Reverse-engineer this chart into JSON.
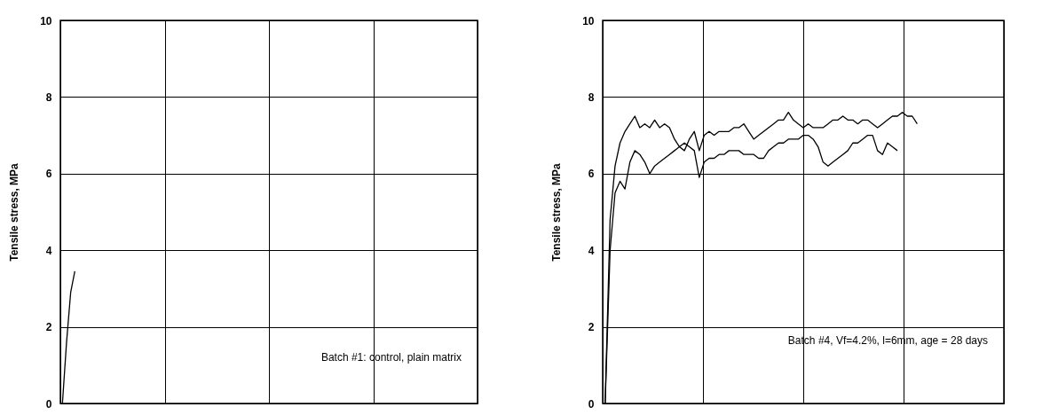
{
  "chart_data": [
    {
      "type": "line",
      "ylabel": "Tensile stress, MPa",
      "categories": [
        null,
        null,
        null,
        null,
        null,
        null,
        null,
        null,
        null,
        null,
        null,
        null,
        null,
        null,
        null,
        null,
        null,
        null,
        null,
        null,
        null,
        null,
        null,
        null,
        null,
        null,
        null,
        null,
        null,
        null,
        null,
        null,
        null,
        null,
        null,
        null,
        null,
        null,
        null,
        null,
        null,
        null,
        null,
        null,
        null,
        null,
        null,
        null,
        null,
        null,
        null,
        null,
        null,
        null,
        null,
        null,
        null,
        null,
        null,
        null,
        null,
        null,
        null,
        null,
        null,
        null,
        null,
        null,
        null,
        null,
        null,
        null,
        null,
        null,
        null,
        null,
        null,
        null,
        null,
        null,
        null,
        null,
        null,
        null,
        null,
        null,
        null,
        null,
        null,
        null,
        null,
        null,
        null,
        null,
        null,
        null,
        null,
        null,
        null,
        null,
        null
      ],
      "ylim": [
        0,
        10
      ],
      "yticks": [
        0,
        2,
        4,
        6,
        8,
        10
      ],
      "grid": true,
      "tick_labels": "y",
      "annotations": [
        "Batch #1: control, plain matrix"
      ],
      "series": [
        {
          "color": "#000000",
          "values": [
            0,
            1.6,
            2.9,
            3.45,
            null,
            null,
            null,
            null,
            null,
            null,
            null,
            null,
            null,
            null,
            null,
            null,
            null,
            null,
            null,
            null,
            null,
            null,
            null,
            null,
            null,
            null,
            null,
            null,
            null,
            null,
            null,
            null,
            null,
            null,
            null,
            null,
            null,
            null,
            null,
            null,
            null,
            null,
            null,
            null,
            null,
            null,
            null,
            null,
            null,
            null,
            null,
            null,
            null,
            null,
            null,
            null,
            null,
            null,
            null,
            null,
            null,
            null,
            null,
            null,
            null,
            null,
            null,
            null,
            null,
            null,
            null,
            null,
            null,
            null,
            null,
            null,
            null,
            null,
            null,
            null,
            null,
            null,
            null,
            null,
            null,
            null,
            null,
            null,
            null,
            null,
            null,
            null,
            null,
            null,
            null,
            null,
            null,
            null,
            null,
            null,
            null
          ]
        }
      ]
    },
    {
      "type": "line",
      "ylabel": "Tensile stress, MPa",
      "categories": [
        null,
        null,
        null,
        null,
        null,
        null,
        null,
        null,
        null,
        null,
        null,
        null,
        null,
        null,
        null,
        null,
        null,
        null,
        null,
        null,
        null,
        null,
        null,
        null,
        null,
        null,
        null,
        null,
        null,
        null,
        null,
        null,
        null,
        null,
        null,
        null,
        null,
        null,
        null,
        null,
        null,
        null,
        null,
        null,
        null,
        null,
        null,
        null,
        null,
        null,
        null,
        null,
        null,
        null,
        null,
        null,
        null,
        null,
        null,
        null,
        null,
        null,
        null,
        null,
        null,
        null,
        null,
        null,
        null,
        null,
        null,
        null,
        null,
        null,
        null,
        null,
        null,
        null,
        null,
        null,
        null
      ],
      "ylim": [
        0,
        10
      ],
      "yticks": [
        0,
        2,
        4,
        6,
        8,
        10
      ],
      "grid": true,
      "tick_labels": "y",
      "annotations": [
        "Batch #4, Vf=4.2%, l=6mm, age = 28 days"
      ],
      "series": [
        {
          "color": "#000000",
          "values": [
            0,
            4.8,
            6.2,
            6.8,
            7.1,
            7.3,
            7.5,
            7.2,
            7.3,
            7.2,
            7.4,
            7.2,
            7.3,
            7.2,
            6.9,
            6.7,
            6.6,
            6.9,
            7.1,
            6.6,
            7.0,
            7.1,
            7.0,
            7.1,
            7.1,
            7.1,
            7.2,
            7.2,
            7.3,
            7.1,
            6.9,
            7.0,
            7.1,
            7.2,
            7.3,
            7.4,
            7.4,
            7.6,
            7.4,
            7.3,
            7.2,
            7.3,
            7.2,
            7.2,
            7.2,
            7.3,
            7.4,
            7.4,
            7.5,
            7.4,
            7.4,
            7.3,
            7.4,
            7.4,
            7.3,
            7.2,
            7.3,
            7.4,
            7.5,
            7.5,
            7.6,
            7.5,
            7.5,
            7.3,
            null,
            null,
            null,
            null,
            null,
            null,
            null,
            null,
            null,
            null,
            null,
            null,
            null,
            null,
            null,
            null,
            null
          ]
        },
        {
          "color": "#000000",
          "values": [
            0,
            4.0,
            5.5,
            5.8,
            5.6,
            6.3,
            6.6,
            6.5,
            6.3,
            6.0,
            6.2,
            6.3,
            6.4,
            6.5,
            6.6,
            6.7,
            6.8,
            6.7,
            6.6,
            5.9,
            6.3,
            6.4,
            6.4,
            6.5,
            6.5,
            6.6,
            6.6,
            6.6,
            6.5,
            6.5,
            6.5,
            6.4,
            6.4,
            6.6,
            6.7,
            6.8,
            6.8,
            6.9,
            6.9,
            6.9,
            7.0,
            7.0,
            6.9,
            6.7,
            6.3,
            6.2,
            6.3,
            6.4,
            6.5,
            6.6,
            6.8,
            6.8,
            6.9,
            7.0,
            7.0,
            6.6,
            6.5,
            6.8,
            6.7,
            6.6,
            null,
            null,
            null,
            null,
            null,
            null,
            null,
            null,
            null,
            null,
            null,
            null,
            null,
            null,
            null,
            null,
            null,
            null,
            null,
            null,
            null
          ]
        }
      ]
    }
  ]
}
